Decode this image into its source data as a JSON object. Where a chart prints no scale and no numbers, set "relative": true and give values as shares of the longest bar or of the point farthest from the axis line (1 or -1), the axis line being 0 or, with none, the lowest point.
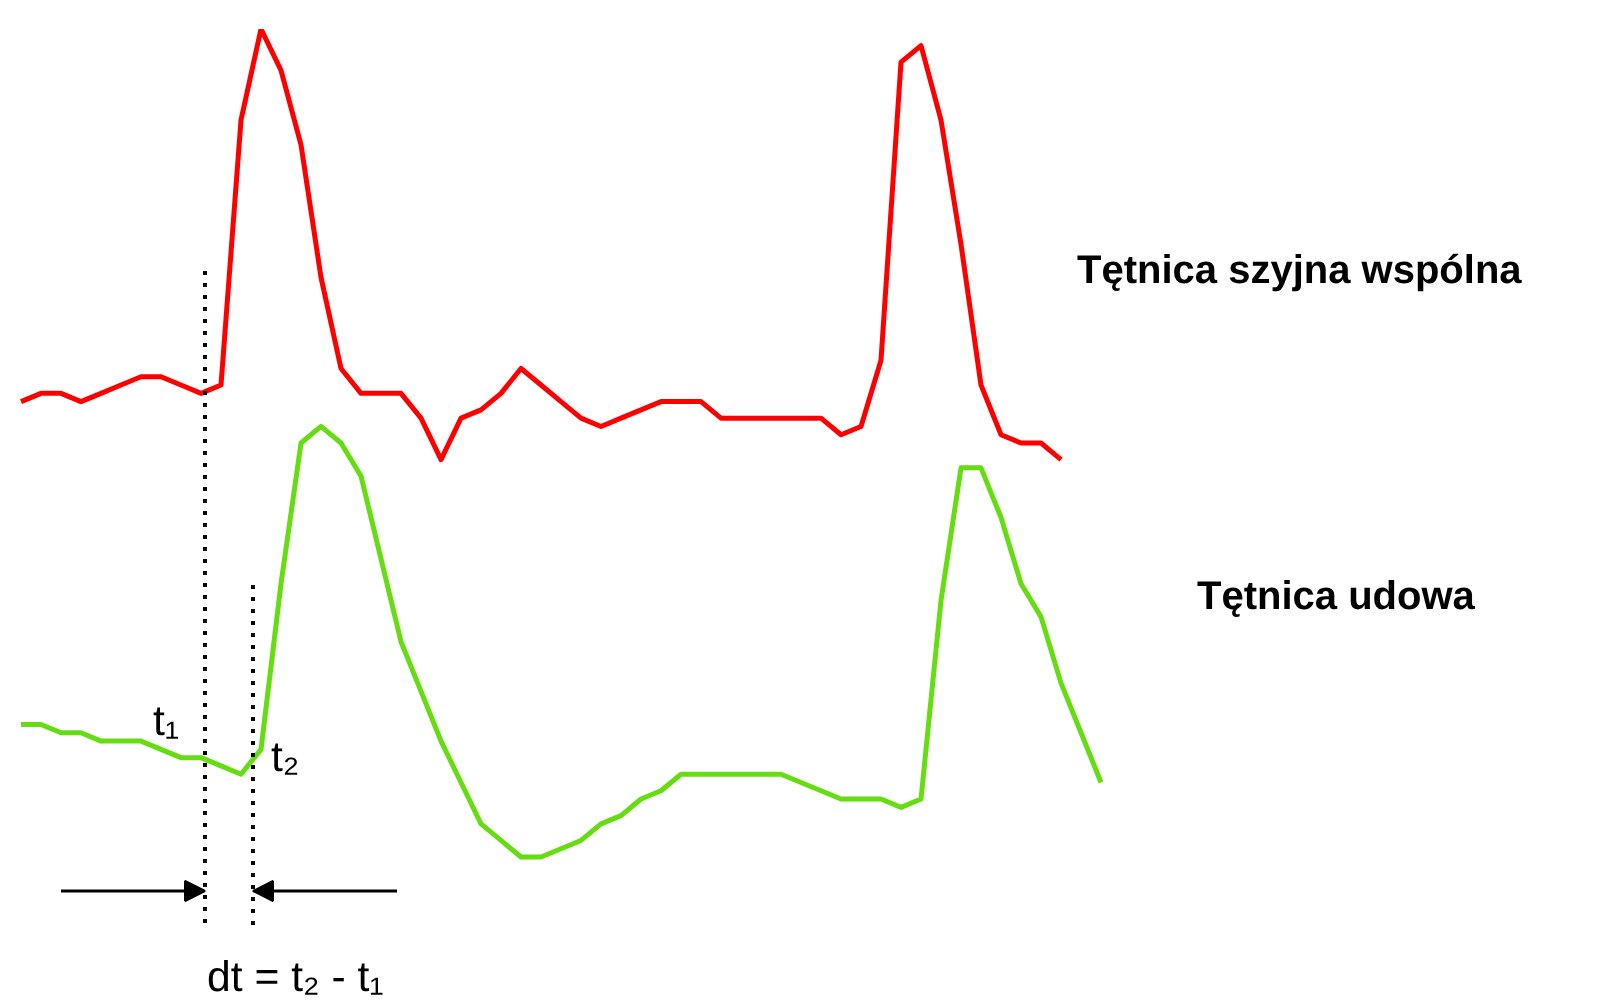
{
  "chart_data": {
    "type": "line",
    "relative": true,
    "grid": false,
    "marker": "none",
    "line_style": "solid",
    "categories": [
      null,
      null,
      null,
      null,
      null,
      null,
      null,
      null,
      null,
      null,
      null,
      null,
      null,
      null,
      null,
      null,
      null,
      null,
      null,
      null,
      null,
      null,
      null,
      null,
      null,
      null,
      null,
      null,
      null,
      null,
      null,
      null,
      null,
      null,
      null,
      null,
      null,
      null,
      null,
      null,
      null,
      null,
      null,
      null,
      null,
      null,
      null,
      null,
      null,
      null,
      null,
      null,
      null,
      null,
      null
    ],
    "series": [
      {
        "name": "Tętnica szyjna wspólna",
        "color": "#ff0000",
        "values": [
          0.55,
          0.56,
          0.56,
          0.55,
          0.56,
          0.57,
          0.58,
          0.58,
          0.57,
          0.56,
          0.57,
          0.89,
          1.0,
          0.95,
          0.86,
          0.7,
          0.59,
          0.56,
          0.56,
          0.56,
          0.53,
          0.48,
          0.53,
          0.54,
          0.56,
          0.59,
          0.57,
          0.55,
          0.53,
          0.52,
          0.53,
          0.54,
          0.55,
          0.55,
          0.55,
          0.53,
          0.53,
          0.53,
          0.53,
          0.53,
          0.53,
          0.51,
          0.52,
          0.6,
          0.96,
          0.98,
          0.89,
          0.74,
          0.57,
          0.51,
          0.5,
          0.5,
          0.48,
          null,
          null
        ]
      },
      {
        "name": "Tętnica udowa",
        "color": "#66dd11",
        "values": [
          0.16,
          0.16,
          0.15,
          0.15,
          0.14,
          0.14,
          0.14,
          0.13,
          0.12,
          0.12,
          0.11,
          0.1,
          0.13,
          0.33,
          0.5,
          0.52,
          0.5,
          0.46,
          0.36,
          0.26,
          0.2,
          0.14,
          0.09,
          0.04,
          0.02,
          0.0,
          0.0,
          0.01,
          0.02,
          0.04,
          0.05,
          0.07,
          0.08,
          0.1,
          0.1,
          0.1,
          0.1,
          0.1,
          0.1,
          0.09,
          0.08,
          0.07,
          0.07,
          0.07,
          0.06,
          0.07,
          0.31,
          0.47,
          0.47,
          0.41,
          0.33,
          0.29,
          0.21,
          0.15,
          0.09
        ]
      }
    ],
    "annotations": [
      "t₁",
      "t₂",
      "dt = t₂ - t₁"
    ]
  }
}
